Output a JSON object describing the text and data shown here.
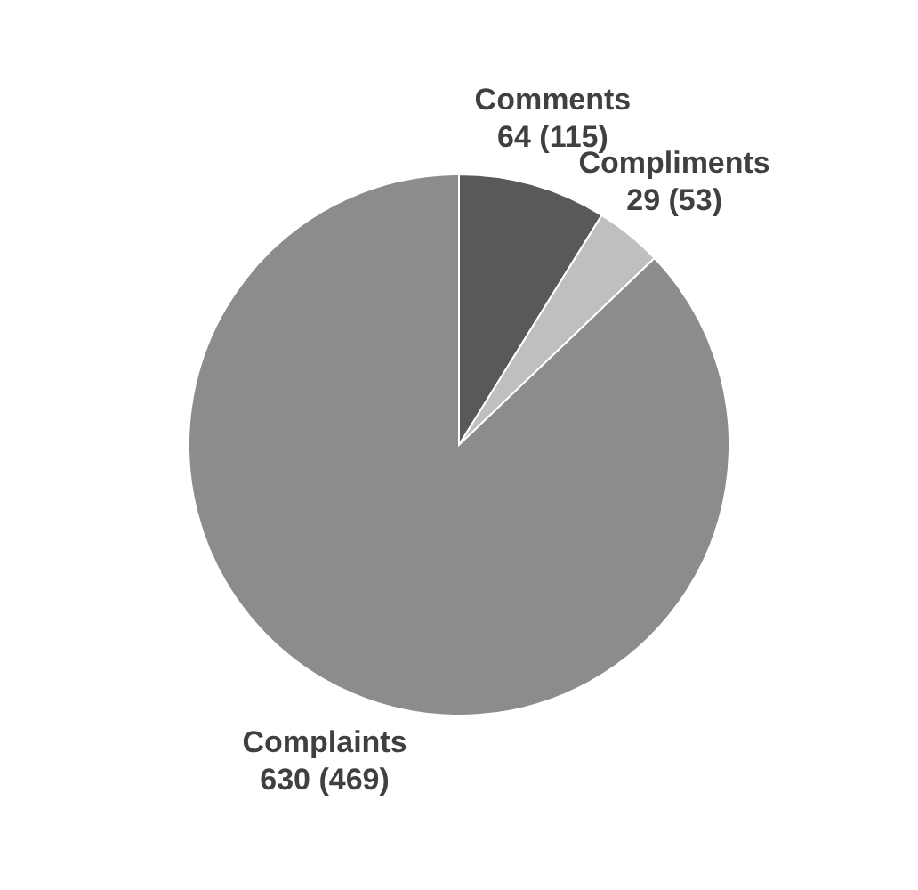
{
  "chart_data": {
    "type": "pie",
    "categories": [
      "Comments",
      "Compliments",
      "Complaints"
    ],
    "values": [
      64,
      29,
      630
    ],
    "colors": [
      "#595959",
      "#bfbfbf",
      "#8c8c8c"
    ],
    "value_labels": [
      "64 (115)",
      "29 (53)",
      "630 (469)"
    ],
    "legend": false
  }
}
